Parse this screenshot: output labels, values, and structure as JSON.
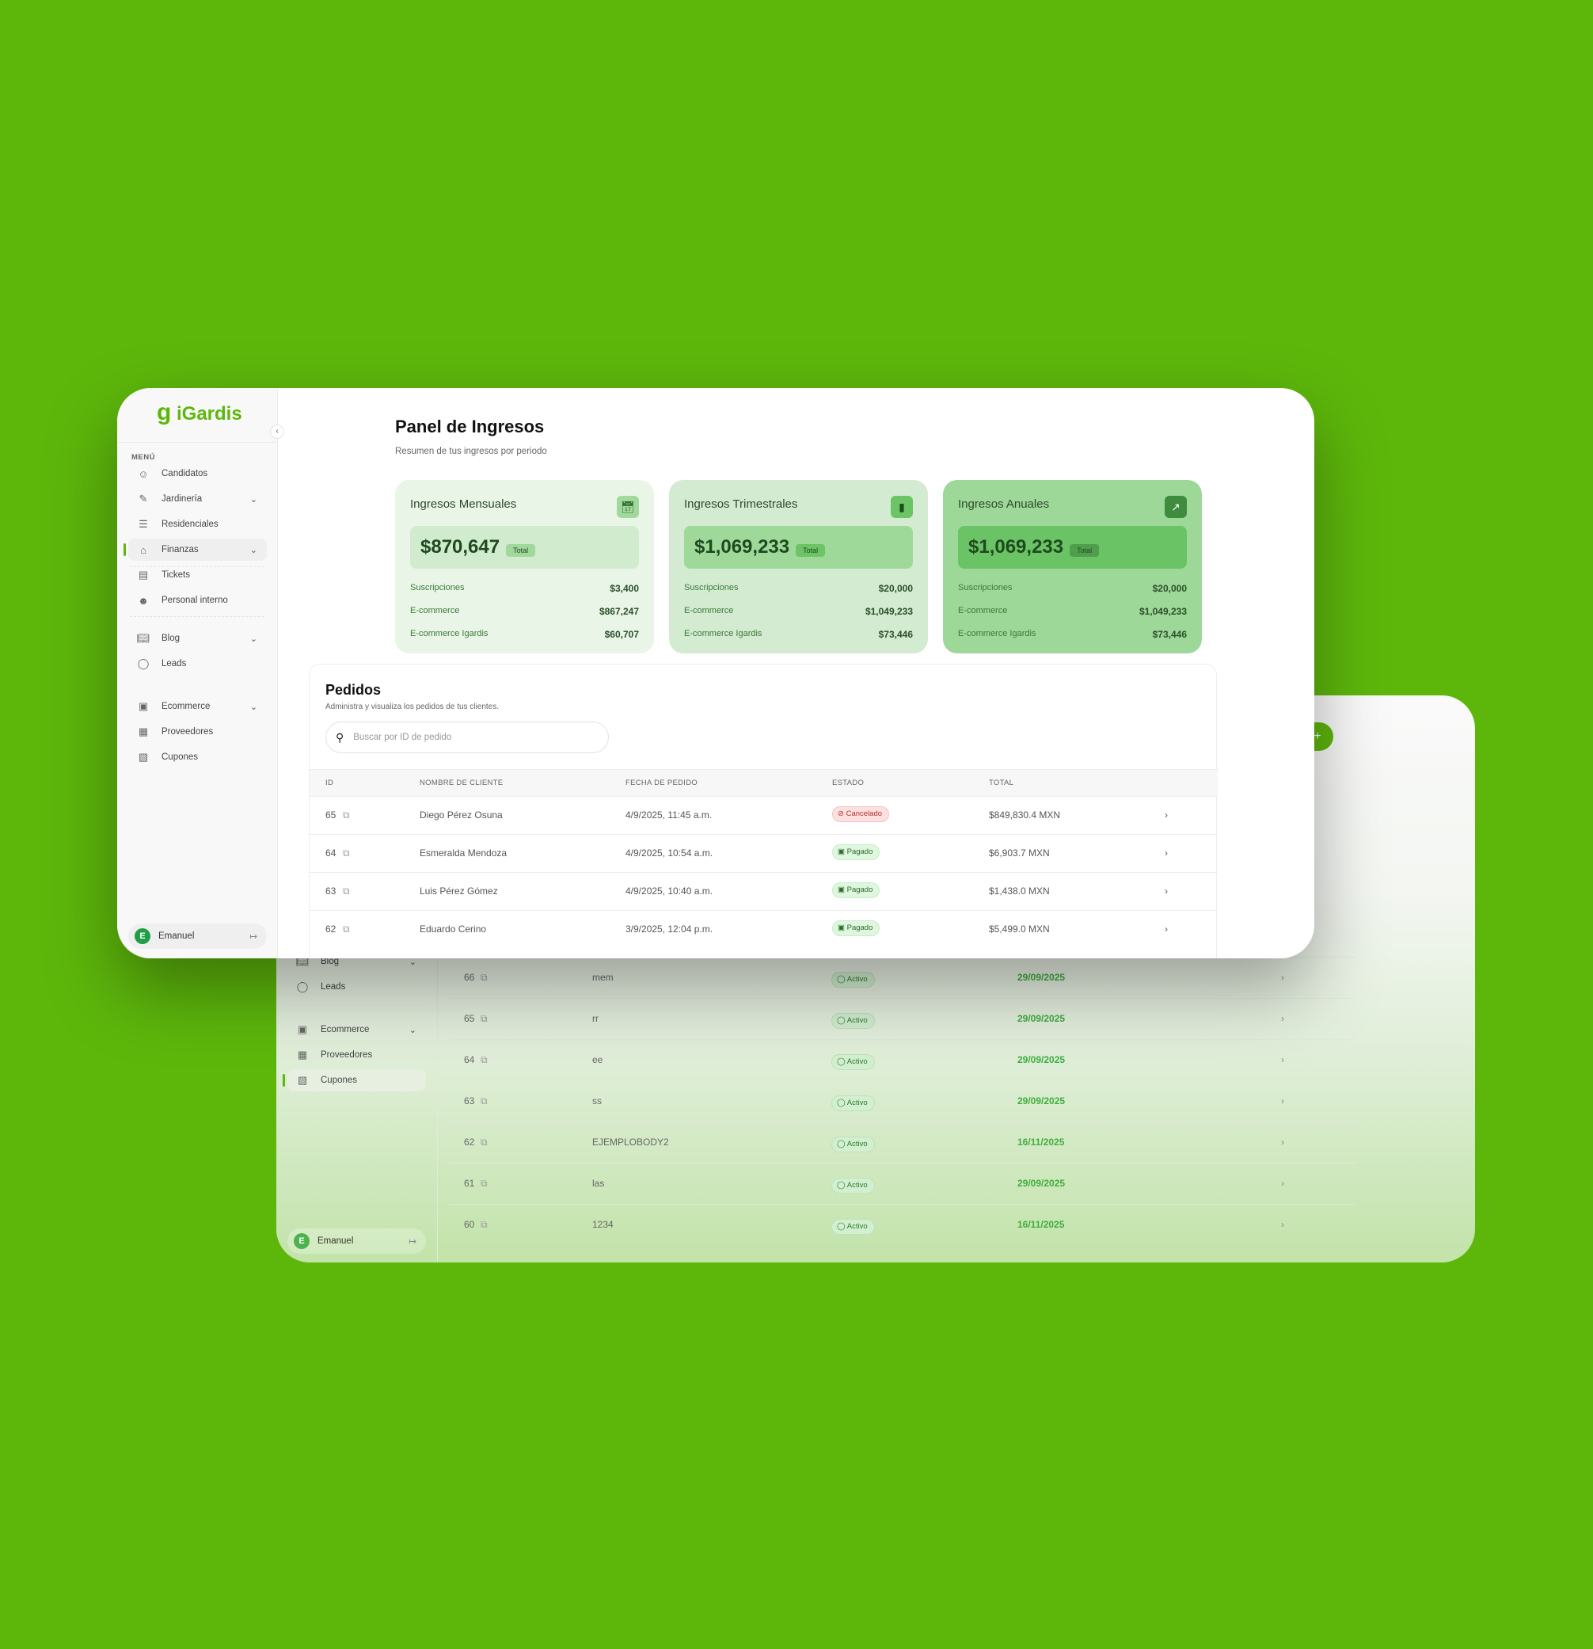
{
  "colors": {
    "background": "#5db70b",
    "brand": "#5db70b",
    "card1": "#e9f5e7",
    "card2": "#d3ebd0",
    "card3": "#9dd898"
  },
  "back": {
    "sidebar": [
      {
        "label": "Blog",
        "icon": "book-icon",
        "chevron": true
      },
      {
        "label": "Leads",
        "icon": "chat-icon"
      },
      {
        "label": "Ecommerce",
        "icon": "bag-icon",
        "chevron": true
      },
      {
        "label": "Proveedores",
        "icon": "building-icon"
      },
      {
        "label": "Cupones",
        "icon": "coupon-icon",
        "active": true
      }
    ],
    "user": {
      "initial": "E",
      "name": "Emanuel"
    },
    "add_label": "+",
    "rows": [
      {
        "id": "66",
        "name": "mem",
        "status": "Activo",
        "date": "29/09/2025"
      },
      {
        "id": "65",
        "name": "rr",
        "status": "Activo",
        "date": "29/09/2025"
      },
      {
        "id": "64",
        "name": "ee",
        "status": "Activo",
        "date": "29/09/2025"
      },
      {
        "id": "63",
        "name": "ss",
        "status": "Activo",
        "date": "29/09/2025"
      },
      {
        "id": "62",
        "name": "EJEMPLOBODY2",
        "status": "Activo",
        "date": "16/11/2025"
      },
      {
        "id": "61",
        "name": "las",
        "status": "Activo",
        "date": "29/09/2025"
      },
      {
        "id": "60",
        "name": "1234",
        "status": "Activo",
        "date": "16/11/2025"
      }
    ]
  },
  "front": {
    "logo": "iGardis",
    "menu_label": "MENÚ",
    "sidebar": [
      {
        "label": "Candidatos",
        "icon": "user-plus-icon"
      },
      {
        "label": "Jardinería",
        "icon": "shovel-icon",
        "chevron": true
      },
      {
        "label": "Residenciales",
        "icon": "fence-icon"
      },
      {
        "label": "Finanzas",
        "icon": "bank-icon",
        "chevron": true,
        "active": true
      },
      {
        "label": "Tickets",
        "icon": "ticket-icon"
      },
      {
        "label": "Personal interno",
        "icon": "user-gear-icon"
      },
      {
        "label": "Blog",
        "icon": "book-icon",
        "chevron": true
      },
      {
        "label": "Leads",
        "icon": "chat-icon"
      },
      {
        "label": "Ecommerce",
        "icon": "bag-icon",
        "chevron": true
      },
      {
        "label": "Proveedores",
        "icon": "building-icon"
      },
      {
        "label": "Cupones",
        "icon": "coupon-icon"
      }
    ],
    "user": {
      "initial": "E",
      "name": "Emanuel"
    },
    "title": "Panel de Ingresos",
    "subtitle": "Resumen de tus ingresos por periodo",
    "cards": [
      {
        "title": "Ingresos Mensuales",
        "icon": "calendar-icon",
        "total": "$870,647",
        "tag": "Total",
        "rows": [
          [
            "Suscripciones",
            "$3,400"
          ],
          [
            "E-commerce",
            "$867,247"
          ],
          [
            "E-commerce Igardis",
            "$60,707"
          ]
        ]
      },
      {
        "title": "Ingresos Trimestrales",
        "icon": "bar-chart-icon",
        "total": "$1,069,233",
        "tag": "Total",
        "rows": [
          [
            "Suscripciones",
            "$20,000"
          ],
          [
            "E-commerce",
            "$1,049,233"
          ],
          [
            "E-commerce Igardis",
            "$73,446"
          ]
        ]
      },
      {
        "title": "Ingresos Anuales",
        "icon": "trend-up-icon",
        "total": "$1,069,233",
        "tag": "Total",
        "rows": [
          [
            "Suscripciones",
            "$20,000"
          ],
          [
            "E-commerce",
            "$1,049,233"
          ],
          [
            "E-commerce Igardis",
            "$73,446"
          ]
        ]
      }
    ],
    "orders": {
      "title": "Pedidos",
      "subtitle": "Administra y visualiza los pedidos de tus clientes.",
      "search_placeholder": "Buscar por ID de pedido",
      "columns": [
        "ID",
        "NOMBRE DE CLIENTE",
        "FECHA DE PEDIDO",
        "ESTADO",
        "TOTAL"
      ],
      "rows": [
        {
          "id": "65",
          "name": "Diego Pérez Osuna",
          "date": "4/9/2025, 11:45 a.m.",
          "status": "Cancelado",
          "total": "$849,830.4 MXN"
        },
        {
          "id": "64",
          "name": "Esmeralda Mendoza",
          "date": "4/9/2025, 10:54 a.m.",
          "status": "Pagado",
          "total": "$6,903.7 MXN"
        },
        {
          "id": "63",
          "name": "Luis Pérez Gómez",
          "date": "4/9/2025, 10:40 a.m.",
          "status": "Pagado",
          "total": "$1,438.0 MXN"
        },
        {
          "id": "62",
          "name": "Eduardo Cerino",
          "date": "3/9/2025, 12:04 p.m.",
          "status": "Pagado",
          "total": "$5,499.0 MXN"
        }
      ]
    }
  }
}
